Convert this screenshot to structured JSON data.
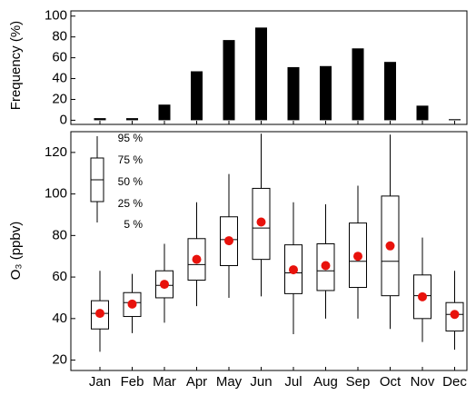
{
  "chart_data": [
    {
      "type": "bar",
      "ylabel": "Frequency (%)",
      "color": "#000000",
      "values": [
        2,
        2,
        15,
        47,
        77,
        89,
        51,
        52,
        69,
        56,
        14,
        1
      ],
      "ylim": [
        -4,
        105
      ],
      "yticks": [
        0,
        20,
        40,
        60,
        80,
        100
      ]
    },
    {
      "type": "box",
      "ylabel": "O₃ (ppbv)",
      "categories": [
        "Jan",
        "Feb",
        "Mar",
        "Apr",
        "May",
        "Jun",
        "Jul",
        "Aug",
        "Sep",
        "Oct",
        "Nov",
        "Dec"
      ],
      "p5": [
        24,
        33,
        38,
        46,
        50,
        50.7,
        32.5,
        40,
        40,
        35,
        28.7,
        25
      ],
      "p25": [
        35,
        41,
        50,
        58.5,
        65.5,
        68.5,
        52,
        53.5,
        55,
        51,
        40,
        34
      ],
      "median": [
        42.5,
        47.7,
        56,
        66,
        78,
        83.6,
        62,
        63,
        67.6,
        67.6,
        51,
        42
      ],
      "p75": [
        48.6,
        52.5,
        63,
        78.5,
        89,
        102.7,
        75.5,
        76,
        86,
        99,
        61,
        47.7
      ],
      "p95": [
        63,
        61.5,
        76,
        96,
        109.6,
        129,
        96,
        95,
        104,
        128.6,
        79,
        63
      ],
      "mean": [
        42.5,
        47,
        56.5,
        68.5,
        77.5,
        86.5,
        63.5,
        65.5,
        70,
        75,
        50.5,
        42
      ],
      "box_color": "#000000",
      "mean_color": "#e8120c",
      "legend_labels": [
        "95 %",
        "75 %",
        "50 %",
        "25 %",
        "5 %"
      ],
      "ylim": [
        15,
        130
      ],
      "yticks": [
        20,
        40,
        60,
        80,
        100,
        120
      ]
    }
  ]
}
